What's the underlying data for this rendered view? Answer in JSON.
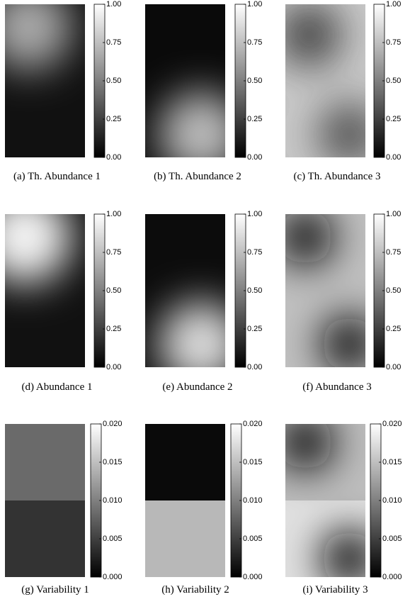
{
  "chart_data": [
    {
      "type": "heatmap",
      "title": "(a) Th. Abundance 1",
      "zlim": [
        0,
        1
      ],
      "zticks": [
        {
          "value": 0,
          "label": "0.00"
        },
        0.25,
        {
          "value": 0.5,
          "label": "0.50"
        },
        0.75,
        {
          "value": 1,
          "label": "1.00"
        }
      ]
    },
    {
      "type": "heatmap",
      "title": "(b) Th. Abundance 2",
      "zlim": [
        0,
        1
      ],
      "zticks": [
        {
          "value": 0,
          "label": "0.00"
        },
        0.25,
        {
          "value": 0.5,
          "label": "0.50"
        },
        0.75,
        {
          "value": 1,
          "label": "1.00"
        }
      ]
    },
    {
      "type": "heatmap",
      "title": "(c) Th. Abundance 3",
      "zlim": [
        0,
        1
      ],
      "zticks": [
        {
          "value": 0,
          "label": "0.00"
        },
        0.25,
        {
          "value": 0.5,
          "label": "0.50"
        },
        0.75,
        {
          "value": 1,
          "label": "1.00"
        }
      ]
    },
    {
      "type": "heatmap",
      "title": "(d) Abundance 1",
      "zlim": [
        0,
        1
      ],
      "zticks": [
        {
          "value": 0,
          "label": "0.00"
        },
        0.25,
        {
          "value": 0.5,
          "label": "0.50"
        },
        0.75,
        {
          "value": 1,
          "label": "1.00"
        }
      ]
    },
    {
      "type": "heatmap",
      "title": "(e) Abundance 2",
      "zlim": [
        0,
        1
      ],
      "zticks": [
        {
          "value": 0,
          "label": "0.00"
        },
        0.25,
        {
          "value": 0.5,
          "label": "0.50"
        },
        0.75,
        {
          "value": 1,
          "label": "1.00"
        }
      ]
    },
    {
      "type": "heatmap",
      "title": "(f) Abundance 3",
      "zlim": [
        0,
        1
      ],
      "zticks": [
        {
          "value": 0,
          "label": "0.00"
        },
        0.25,
        {
          "value": 0.5,
          "label": "0.50"
        },
        0.75,
        {
          "value": 1,
          "label": "1.00"
        }
      ]
    },
    {
      "type": "heatmap",
      "title": "(g) Variability 1",
      "zlim": [
        0,
        0.02
      ],
      "zticks": [
        {
          "value": 0,
          "label": "0.000"
        },
        0.005,
        {
          "value": 0.01,
          "label": "0.010"
        },
        0.015,
        {
          "value": 0.02,
          "label": "0.020"
        }
      ]
    },
    {
      "type": "heatmap",
      "title": "(h) Variability 2",
      "zlim": [
        0,
        0.02
      ],
      "zticks": [
        {
          "value": 0,
          "label": "0.000"
        },
        0.005,
        {
          "value": 0.01,
          "label": "0.010"
        },
        0.015,
        {
          "value": 0.02,
          "label": "0.020"
        }
      ]
    },
    {
      "type": "heatmap",
      "title": "(i) Variability 3",
      "zlim": [
        0,
        0.02
      ],
      "zticks": [
        {
          "value": 0,
          "label": "0.000"
        },
        0.005,
        {
          "value": 0.01,
          "label": "0.010"
        },
        0.015,
        {
          "value": 0.02,
          "label": "0.020"
        }
      ]
    }
  ]
}
